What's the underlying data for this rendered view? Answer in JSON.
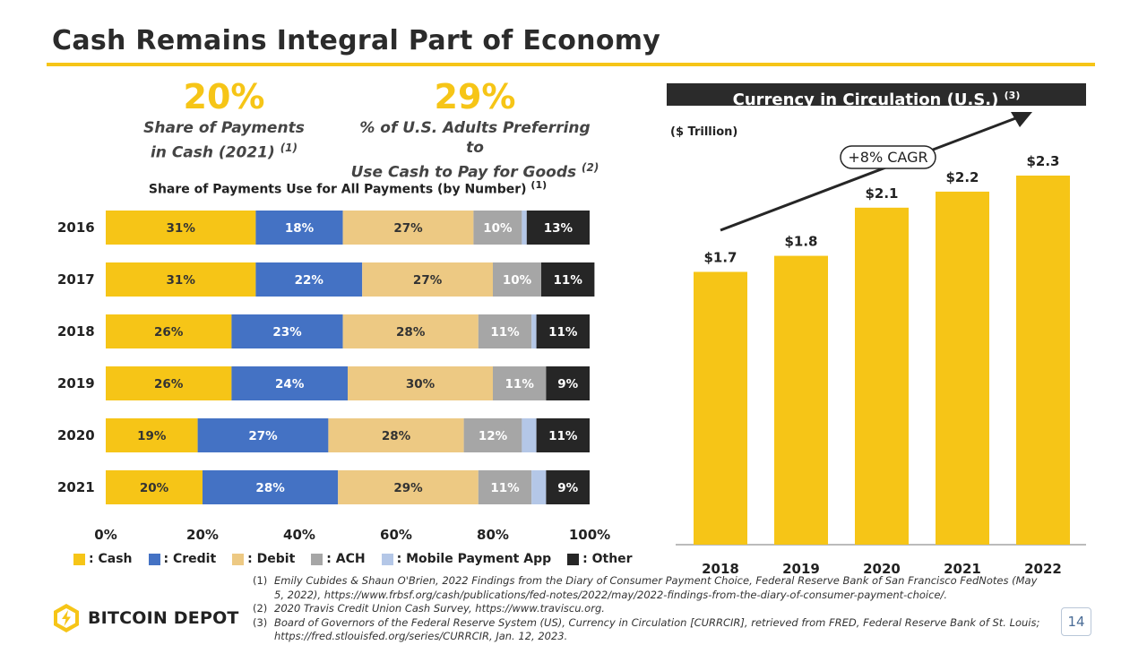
{
  "header": {
    "title": "Cash Remains Integral Part of Economy"
  },
  "stats": [
    {
      "value": "20%",
      "caption_line1": "Share of Payments",
      "caption_line2": "in Cash (2021)",
      "note": "(1)"
    },
    {
      "value": "29%",
      "caption_line1": "% of U.S. Adults Preferring to",
      "caption_line2": "Use Cash to Pay for Goods",
      "note": "(2)"
    }
  ],
  "bar_chart": {
    "title": "Share of Payments Use for All Payments (by Number)",
    "note": "(1)"
  },
  "cic_chart": {
    "title": "Currency in Circulation (U.S.)",
    "note": "(3)",
    "unit": "($ Trillion)",
    "cagr_label": "+8% CAGR"
  },
  "legend": [
    {
      "label": ": Cash",
      "color": "#f6c517"
    },
    {
      "label": ": Credit",
      "color": "#4472c4"
    },
    {
      "label": ": Debit",
      "color": "#edc983"
    },
    {
      "label": ": ACH",
      "color": "#a6a6a6"
    },
    {
      "label": ": Mobile Payment App",
      "color": "#b4c7e7"
    },
    {
      "label": ": Other",
      "color": "#262626"
    }
  ],
  "chart_data": [
    {
      "type": "bar",
      "orientation": "horizontal",
      "stacked": true,
      "title": "Share of Payments Use for All Payments (by Number)",
      "categories": [
        "2016",
        "2017",
        "2018",
        "2019",
        "2020",
        "2021"
      ],
      "series": [
        {
          "name": "Cash",
          "color": "#f6c517",
          "values": [
            31,
            31,
            26,
            26,
            19,
            20
          ],
          "labels": [
            "31%",
            "31%",
            "26%",
            "26%",
            "19%",
            "20%"
          ]
        },
        {
          "name": "Credit",
          "color": "#4472c4",
          "values": [
            18,
            22,
            23,
            24,
            27,
            28
          ],
          "labels": [
            "18%",
            "22%",
            "23%",
            "24%",
            "27%",
            "28%"
          ]
        },
        {
          "name": "Debit",
          "color": "#edc983",
          "values": [
            27,
            27,
            28,
            30,
            28,
            29
          ],
          "labels": [
            "27%",
            "27%",
            "28%",
            "30%",
            "28%",
            "29%"
          ]
        },
        {
          "name": "ACH",
          "color": "#a6a6a6",
          "values": [
            10,
            10,
            11,
            11,
            12,
            11
          ],
          "labels": [
            "10%",
            "10%",
            "11%",
            "11%",
            "12%",
            "11%"
          ]
        },
        {
          "name": "Mobile Payment App",
          "color": "#b4c7e7",
          "values": [
            1,
            0,
            1,
            0,
            3,
            3
          ],
          "labels": [
            "",
            "",
            "",
            "",
            "",
            ""
          ]
        },
        {
          "name": "Other",
          "color": "#262626",
          "values": [
            13,
            11,
            11,
            9,
            11,
            9
          ],
          "labels": [
            "13%",
            "11%",
            "11%",
            "9%",
            "11%",
            "9%"
          ]
        }
      ],
      "xlim": [
        0,
        100
      ],
      "xticks": [
        "0%",
        "20%",
        "40%",
        "60%",
        "80%",
        "100%"
      ],
      "legend_position": "bottom"
    },
    {
      "type": "bar",
      "title": "Currency in Circulation (U.S.)",
      "unit": "($ Trillion)",
      "categories": [
        "2018",
        "2019",
        "2020",
        "2021",
        "2022"
      ],
      "values": [
        1.7,
        1.8,
        2.1,
        2.2,
        2.3
      ],
      "labels": [
        "$1.7",
        "$1.8",
        "$2.1",
        "$2.2",
        "$2.3"
      ],
      "ylim": [
        0,
        2.3
      ],
      "color": "#f6c517",
      "annotation": "+8% CAGR"
    }
  ],
  "footnotes": [
    {
      "num": "(1)",
      "text": "Emily Cubides & Shaun O'Brien, 2022 Findings from the Diary of Consumer Payment Choice, Federal Reserve Bank of San Francisco FedNotes (May 5, 2022), https://www.frbsf.org/cash/publications/fed-notes/2022/may/2022-findings-from-the-diary-of-consumer-payment-choice/."
    },
    {
      "num": "(2)",
      "text": "2020 Travis Credit Union Cash Survey, https://www.traviscu.org."
    },
    {
      "num": "(3)",
      "text": "Board of Governors of the Federal Reserve System (US), Currency in Circulation [CURRCIR], retrieved from FRED, Federal Reserve Bank of St. Louis; https://fred.stlouisfed.org/series/CURRCIR, Jan. 12, 2023."
    }
  ],
  "footer": {
    "logo_text": "BITCOIN DEPOT",
    "page_number": "14"
  }
}
